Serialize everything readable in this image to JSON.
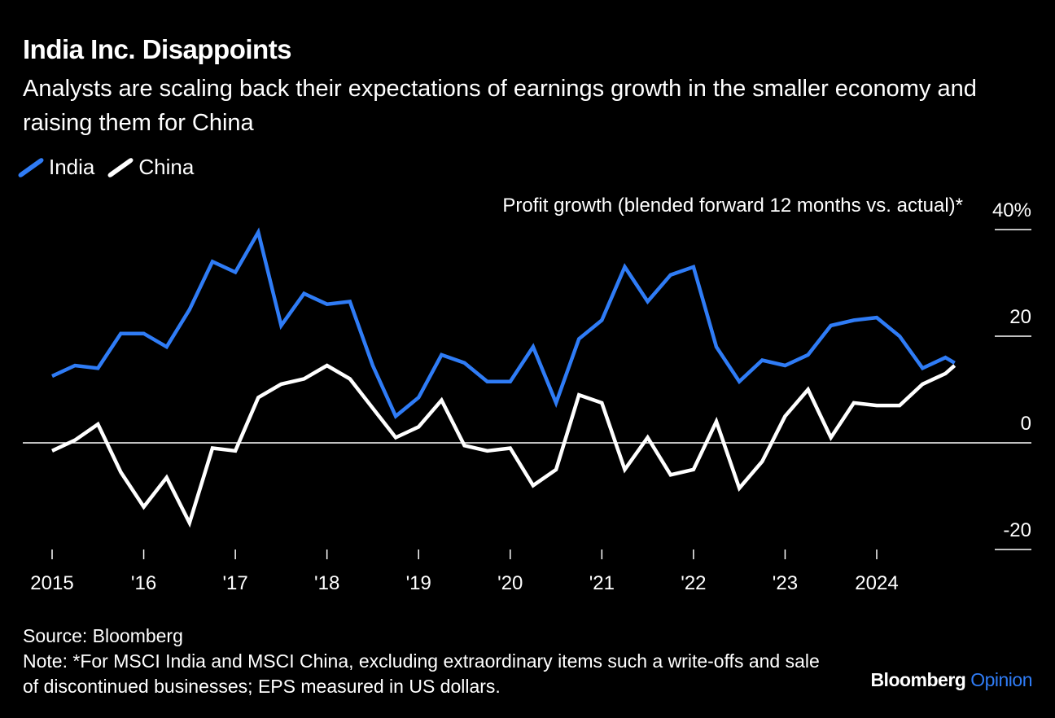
{
  "title": "India Inc. Disappoints",
  "subtitle": "Analysts are scaling back their expectations of earnings growth in the smaller economy and raising them for China",
  "footer": {
    "source": "Source: Bloomberg",
    "note": "Note: *For MSCI India and MSCI China, excluding extraordinary items such a write-offs and sale of discontinued businesses; EPS measured in US dollars."
  },
  "brand": {
    "name": "Bloomberg",
    "section": "Opinion"
  },
  "colors": {
    "background": "#000000",
    "india": "#2f7cf6",
    "china": "#ffffff",
    "text": "#ffffff"
  },
  "chart_data": {
    "type": "line",
    "title": "India Inc. Disappoints",
    "ylabel": "Profit growth (blended forward 12 months vs. actual)*",
    "ylim": [
      -20,
      40
    ],
    "yticks": [
      {
        "value": 40,
        "label": "40%"
      },
      {
        "value": 20,
        "label": "20"
      },
      {
        "value": 0,
        "label": "0"
      },
      {
        "value": -20,
        "label": "-20"
      }
    ],
    "xlim": [
      2015,
      2025
    ],
    "xticks": [
      {
        "value": 2015,
        "label": "2015"
      },
      {
        "value": 2016,
        "label": "'16"
      },
      {
        "value": 2017,
        "label": "'17"
      },
      {
        "value": 2018,
        "label": "'18"
      },
      {
        "value": 2019,
        "label": "'19"
      },
      {
        "value": 2020,
        "label": "'20"
      },
      {
        "value": 2021,
        "label": "'21"
      },
      {
        "value": 2022,
        "label": "'22"
      },
      {
        "value": 2023,
        "label": "'23"
      },
      {
        "value": 2024,
        "label": "2024"
      }
    ],
    "legend_position": "top-left",
    "x": [
      2015.0,
      2015.25,
      2015.5,
      2015.75,
      2016.0,
      2016.25,
      2016.5,
      2016.75,
      2017.0,
      2017.25,
      2017.5,
      2017.75,
      2018.0,
      2018.25,
      2018.5,
      2018.75,
      2019.0,
      2019.25,
      2019.5,
      2019.75,
      2020.0,
      2020.25,
      2020.5,
      2020.75,
      2021.0,
      2021.25,
      2021.5,
      2021.75,
      2022.0,
      2022.25,
      2022.5,
      2022.75,
      2023.0,
      2023.25,
      2023.5,
      2023.75,
      2024.0,
      2024.25,
      2024.5,
      2024.75,
      2024.85
    ],
    "series": [
      {
        "name": "India",
        "color": "#2f7cf6",
        "values": [
          12.5,
          14.5,
          14,
          20.5,
          20.5,
          18,
          25,
          34,
          32,
          39.5,
          22,
          28,
          26,
          26.5,
          14.5,
          5,
          8.5,
          16.5,
          15,
          11.5,
          11.5,
          18,
          7.5,
          19.5,
          23,
          33,
          26.5,
          31.5,
          33,
          18,
          11.5,
          15.5,
          14.5,
          16.5,
          22,
          23,
          23.5,
          20,
          14,
          16,
          15
        ]
      },
      {
        "name": "China",
        "color": "#ffffff",
        "values": [
          -1.5,
          0.5,
          3.5,
          -5.5,
          -12,
          -6.5,
          -15,
          -1,
          -1.5,
          8.5,
          11,
          12,
          14.5,
          12,
          6.5,
          1,
          3,
          8,
          -0.5,
          -1.5,
          -1,
          -8,
          -5,
          9,
          7.5,
          -5,
          1,
          -6,
          -5,
          4,
          -8.5,
          -3.5,
          5,
          10,
          1,
          7.5,
          7,
          7,
          11,
          13,
          14.5
        ]
      }
    ]
  }
}
